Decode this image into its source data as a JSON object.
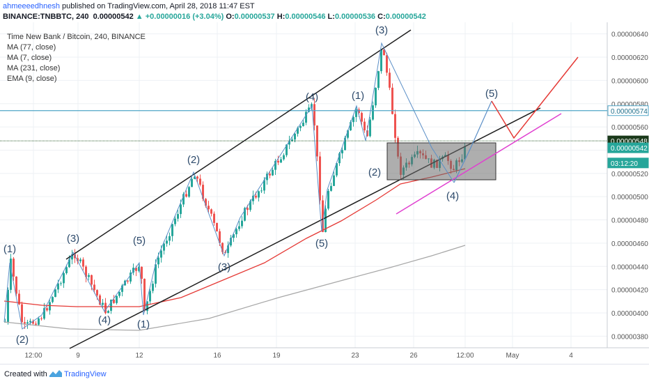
{
  "header": {
    "author": "ahmeeeedhnesh",
    "published": " published on TradingView.com, April 28, 2018 11:47 EST",
    "symbol": "BINANCE:TNBBTC, 240",
    "last": "0.00000542",
    "change": "▲ +0.00000016 (+3.04%)",
    "o_label": "O:",
    "o": "0.00000537",
    "h_label": "H:",
    "h": "0.00000546",
    "l_label": "L:",
    "l": "0.00000536",
    "c_label": "C:",
    "c": "0.00000542"
  },
  "legend": {
    "title": "Time New Bank / Bitcoin, 240, BINANCE",
    "ind1": "MA (77, close)",
    "ind2": "MA (7, close)",
    "ind3": "MA (231, close)",
    "ind4": "EMA (9, close)"
  },
  "footer": {
    "created": "Created with",
    "brand": "TradingView"
  },
  "colors": {
    "up": "#26a69a",
    "down": "#ef5350",
    "wave": "#5b8fc7",
    "trend": "#1e1e1e",
    "ma77": "#e53935",
    "ma231": "#a7a7a7",
    "hline": "#4fa6c7",
    "magenta": "#e040d0",
    "proj": "#e53935"
  },
  "chart_data": {
    "type": "candlestick",
    "ylim": [
      3.7e-06,
      6.5e-06
    ],
    "y_ticks": [
      "0.00000640",
      "0.00000620",
      "0.00000600",
      "0.00000580",
      "0.00000560",
      "0.00000540",
      "0.00000520",
      "0.00000500",
      "0.00000480",
      "0.00000460",
      "0.00000440",
      "0.00000420",
      "0.00000400",
      "0.00000380"
    ],
    "x_ticks": [
      "12:00",
      "9",
      "12",
      "16",
      "19",
      "23",
      "26",
      "12:00",
      "May",
      "4"
    ],
    "price_labels": [
      {
        "text": "0.00000574",
        "value": 5.74e-06,
        "style": "hline"
      },
      {
        "text": "0.00000548",
        "value": 5.48e-06,
        "style": "dark"
      },
      {
        "text": "0.00000542",
        "value": 5.42e-06,
        "style": "last"
      },
      {
        "text": "03:12:20",
        "value": 5.29e-06,
        "style": "timer"
      }
    ],
    "wave_labels": [
      "(1)",
      "(2)",
      "(3)",
      "(4)",
      "(5)",
      "(1)",
      "(2)",
      "(3)",
      "(4)",
      "(5)",
      "(1)",
      "(2)",
      "(3)",
      "(4)",
      "(5)"
    ]
  }
}
